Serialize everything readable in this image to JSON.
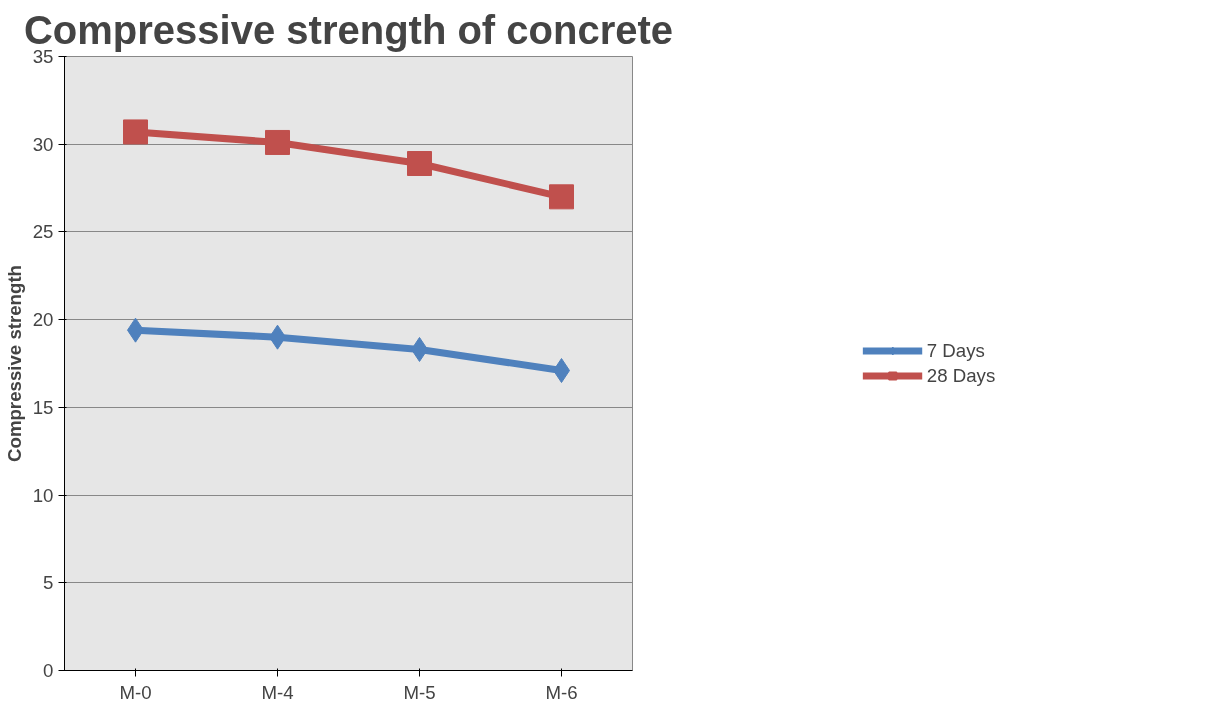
{
  "chart_data": {
    "type": "line",
    "title": "Compressive strength of concrete",
    "ylabel": "Compressive strength",
    "categories": [
      "M-0",
      "M-4",
      "M-5",
      "M-6"
    ],
    "series": [
      {
        "name": "7 Days",
        "color": "#4f81bd",
        "marker": "diamond",
        "values": [
          19.4,
          19.0,
          18.3,
          17.1
        ]
      },
      {
        "name": "28 Days",
        "color": "#c0504d",
        "marker": "square",
        "values": [
          30.7,
          30.1,
          28.9,
          27.0
        ]
      }
    ],
    "ylim": [
      0,
      35
    ],
    "yticks": [
      0,
      5,
      10,
      15,
      20,
      25,
      30,
      35
    ],
    "grid": "y",
    "legend": "right"
  }
}
